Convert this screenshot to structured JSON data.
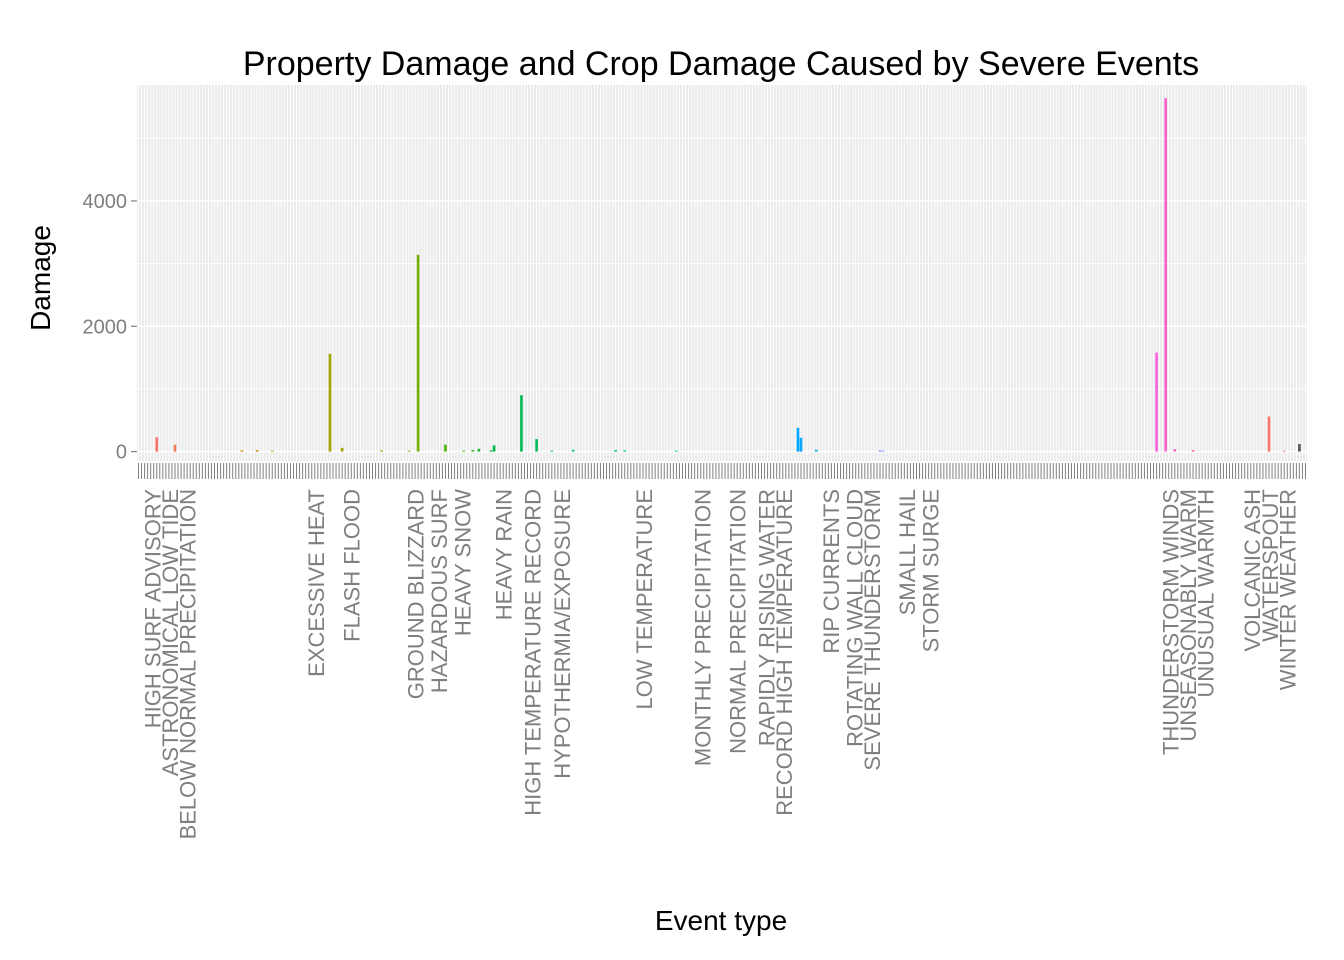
{
  "chart_data": {
    "type": "bar",
    "title": "Property Damage and Crop Damage Caused by Severe Events",
    "xlabel": "Event type",
    "ylabel": "Damage",
    "ylim": [
      -150,
      5850
    ],
    "yticks": [
      0,
      2000,
      4000
    ],
    "grid": true,
    "legend": "none",
    "category_count": 385,
    "categories": [
      "HIGH SURF ADVISORY",
      "ASTRONOMICAL LOW TIDE",
      "BELOW NORMAL PRECIPITATION",
      "EXCESSIVE HEAT",
      "FLASH FLOOD",
      "GROUND BLIZZARD",
      "HAZARDOUS SURF",
      "HEAVY SNOW",
      "HEAVY RAIN",
      "HIGH TEMPERATURE RECORD",
      "HYPOTHERMIA/EXPOSURE",
      "LOW TEMPERATURE",
      "MONTHLY PRECIPITATION",
      "NORMAL PRECIPITATION",
      "RAPIDLY RISING WATER",
      "RECORD HIGH TEMPERATURE",
      "RIP CURRENTS",
      "ROTATING WALL CLOUD",
      "SEVERE THUNDERSTORM",
      "SMALL HAIL",
      "STORM SURGE",
      "THUNDERSTORM WINDS",
      "UNSEASONABLY WARM",
      "UNUSUAL WARMTH",
      "VOLCANIC ASH",
      "WATERSPOUT",
      "WINTER WEATHER"
    ],
    "values": [
      {
        "index": 6,
        "value": 230,
        "color": "#F8766D"
      },
      {
        "index": 12,
        "value": 110,
        "color": "#F27D52"
      },
      {
        "index": 34,
        "value": 20,
        "color": "#D89000"
      },
      {
        "index": 39,
        "value": 25,
        "color": "#CC9600"
      },
      {
        "index": 44,
        "value": 15,
        "color": "#C49A00"
      },
      {
        "index": 63,
        "value": 1560,
        "color": "#A3A500"
      },
      {
        "index": 67,
        "value": 60,
        "color": "#9DA700"
      },
      {
        "index": 80,
        "value": 20,
        "color": "#86AC00"
      },
      {
        "index": 89,
        "value": 15,
        "color": "#7CAE00"
      },
      {
        "index": 92,
        "value": 3140,
        "color": "#74B000"
      },
      {
        "index": 101,
        "value": 110,
        "color": "#4DB600"
      },
      {
        "index": 107,
        "value": 15,
        "color": "#39B600"
      },
      {
        "index": 110,
        "value": 25,
        "color": "#2AB820"
      },
      {
        "index": 112,
        "value": 45,
        "color": "#19BA33"
      },
      {
        "index": 116,
        "value": 20,
        "color": "#00BA38"
      },
      {
        "index": 117,
        "value": 100,
        "color": "#00BB44"
      },
      {
        "index": 126,
        "value": 900,
        "color": "#00BC51"
      },
      {
        "index": 131,
        "value": 200,
        "color": "#00BD5C"
      },
      {
        "index": 136,
        "value": 15,
        "color": "#00BE6A"
      },
      {
        "index": 143,
        "value": 30,
        "color": "#00BF7D"
      },
      {
        "index": 157,
        "value": 25,
        "color": "#00C094"
      },
      {
        "index": 160,
        "value": 20,
        "color": "#00C0A1"
      },
      {
        "index": 177,
        "value": 15,
        "color": "#00C0B8"
      },
      {
        "index": 217,
        "value": 380,
        "color": "#00A9FF"
      },
      {
        "index": 218,
        "value": 220,
        "color": "#00A6FF"
      },
      {
        "index": 223,
        "value": 30,
        "color": "#0CB1EA"
      },
      {
        "index": 244,
        "value": 20,
        "color": "#7C96FF"
      },
      {
        "index": 245,
        "value": 15,
        "color": "#8491FF"
      },
      {
        "index": 335,
        "value": 1580,
        "color": "#F763DE"
      },
      {
        "index": 338,
        "value": 5640,
        "color": "#FD61D1"
      },
      {
        "index": 341,
        "value": 40,
        "color": "#FF62BC"
      },
      {
        "index": 347,
        "value": 25,
        "color": "#FF64B0"
      },
      {
        "index": 372,
        "value": 560,
        "color": "#F8766D"
      },
      {
        "index": 377,
        "value": 15,
        "color": "#F8766D"
      },
      {
        "index": 382,
        "value": 120,
        "color": "#555555"
      }
    ]
  }
}
